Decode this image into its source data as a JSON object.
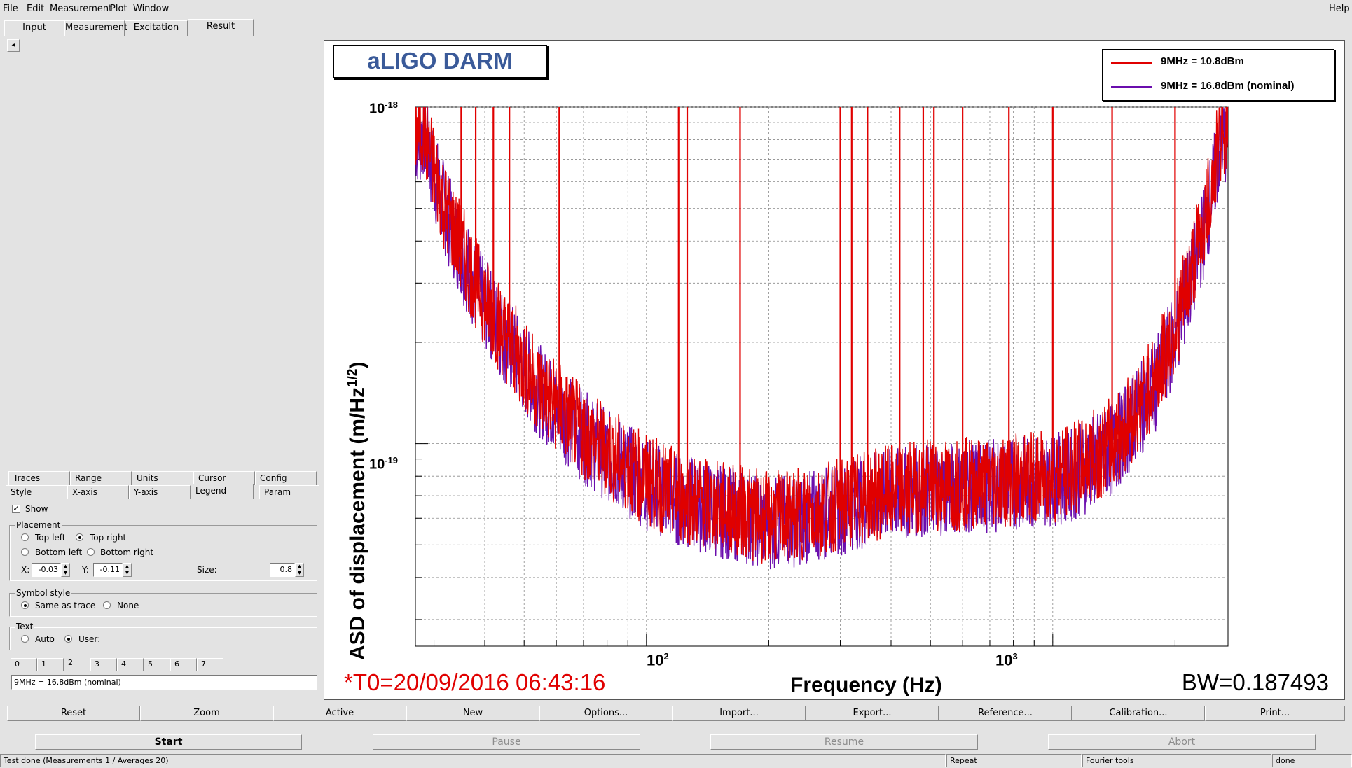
{
  "menu": {
    "file": "File",
    "edit": "Edit",
    "measurement": "Measurement",
    "plot": "Plot",
    "window": "Window",
    "help": "Help"
  },
  "tabs": {
    "input": "Input",
    "measurement": "Measurement",
    "excitation": "Excitation",
    "result": "Result",
    "active": "Result"
  },
  "panel": {
    "tabs_row1": [
      "Traces",
      "Range",
      "Units",
      "Cursor",
      "Config"
    ],
    "tabs_row2": [
      "Style",
      "X-axis",
      "Y-axis",
      "Legend",
      "Param"
    ],
    "active_tab": "Legend",
    "show_label": "Show",
    "show_checked": true,
    "placement": {
      "title": "Placement",
      "options": [
        "Top left",
        "Top right",
        "Bottom left",
        "Bottom right"
      ],
      "selected": "Top right",
      "x_label": "X:",
      "x_value": "-0.03",
      "y_label": "Y:",
      "y_value": "-0.11",
      "size_label": "Size:",
      "size_value": "0.8"
    },
    "symbol_style": {
      "title": "Symbol style",
      "options": [
        "Same as trace",
        "None"
      ],
      "selected": "Same as trace"
    },
    "text": {
      "title": "Text",
      "options": [
        "Auto",
        "User:"
      ],
      "selected": "User:",
      "trace_tabs": [
        "0",
        "1",
        "2",
        "3",
        "4",
        "5",
        "6",
        "7"
      ],
      "active_trace_tab": "2",
      "value": "9MHz = 16.8dBm (nominal)"
    }
  },
  "plot": {
    "title": "aLIGO DARM",
    "legend": [
      {
        "label": "9MHz = 10.8dBm",
        "color": "#e00000"
      },
      {
        "label": "9MHz = 16.8dBm (nominal)",
        "color": "#6a0dad"
      }
    ],
    "y_title": "ASD of displacement (m/Hz",
    "y_title_sup": "1/2",
    "y_title_end": ")",
    "x_title": "Frequency (Hz)",
    "y_ticks": [
      {
        "base": "10",
        "exp": "-18"
      },
      {
        "base": "10",
        "exp": "-19"
      }
    ],
    "x_ticks": [
      {
        "base": "10",
        "exp": "2"
      },
      {
        "base": "10",
        "exp": "3"
      }
    ],
    "t0": "*T0=20/09/2016 06:43:16",
    "bw": "BW=0.187493",
    "colors": {
      "red": "#e00000",
      "purple": "#6a0dad"
    }
  },
  "chart_data": {
    "type": "line",
    "title": "aLIGO DARM",
    "xlabel": "Frequency (Hz)",
    "ylabel": "ASD of displacement (m/Hz^1/2)",
    "x_scale": "log",
    "y_scale": "log",
    "xlim": [
      27,
      2700
    ],
    "ylim": [
      2.5e-20,
      1e-18
    ],
    "grid": true,
    "legend_position": "top-right",
    "series": [
      {
        "name": "9MHz = 10.8dBm",
        "color": "#e00000",
        "x": [
          28,
          30,
          32,
          35,
          38,
          42,
          46,
          50,
          55,
          60,
          65,
          70,
          80,
          90,
          100,
          120,
          150,
          180,
          200,
          230,
          260,
          300,
          350,
          400,
          450,
          500,
          600,
          700,
          800,
          900,
          1000,
          1100,
          1200,
          1400,
          1600,
          1800,
          2000,
          2200,
          2400,
          2600
        ],
        "y": [
          9e-19,
          6.5e-19,
          5e-19,
          3.8e-19,
          3e-19,
          2.4e-19,
          2e-19,
          1.7e-19,
          1.45e-19,
          1.3e-19,
          1.18e-19,
          1.08e-19,
          9.5e-20,
          8.5e-20,
          7.8e-20,
          7e-20,
          6.5e-20,
          6.2e-20,
          6e-20,
          6.1e-20,
          6.3e-20,
          6.6e-20,
          7e-20,
          7.2e-20,
          7.4e-20,
          7.5e-20,
          7.6e-20,
          7.7e-20,
          7.8e-20,
          7.9e-20,
          8e-20,
          8.3e-20,
          8.8e-20,
          1e-19,
          1.25e-19,
          1.6e-19,
          2.2e-19,
          3.3e-19,
          5e-19,
          8.5e-19
        ],
        "lines_x": [
          35,
          38,
          42,
          46,
          61,
          120,
          126,
          170,
          300,
          320,
          350,
          420,
          480,
          510,
          600,
          780,
          1000,
          1400,
          2000
        ]
      },
      {
        "name": "9MHz = 16.8dBm (nominal)",
        "color": "#6a0dad",
        "x": [
          28,
          30,
          32,
          35,
          38,
          42,
          46,
          50,
          55,
          60,
          65,
          70,
          80,
          90,
          100,
          120,
          150,
          180,
          200,
          230,
          260,
          300,
          350,
          400,
          450,
          500,
          600,
          700,
          800,
          900,
          1000,
          1100,
          1200,
          1400,
          1600,
          1800,
          2000,
          2200,
          2400,
          2600
        ],
        "y": [
          8.8e-19,
          6.3e-19,
          4.9e-19,
          3.7e-19,
          2.9e-19,
          2.35e-19,
          1.95e-19,
          1.65e-19,
          1.42e-19,
          1.27e-19,
          1.15e-19,
          1.05e-19,
          9.2e-20,
          8.3e-20,
          7.6e-20,
          6.8e-20,
          6.3e-20,
          6e-20,
          5.8e-20,
          5.9e-20,
          6.1e-20,
          6.4e-20,
          6.8e-20,
          7e-20,
          7.2e-20,
          7.3e-20,
          7.4e-20,
          7.5e-20,
          7.6e-20,
          7.7e-20,
          7.8e-20,
          8e-20,
          8.5e-20,
          9.6e-20,
          1.2e-19,
          1.5e-19,
          2.1e-19,
          3.1e-19,
          4.7e-19,
          8e-19
        ]
      }
    ]
  },
  "toolbar": [
    "Reset",
    "Zoom",
    "Active",
    "New",
    "Options...",
    "Import...",
    "Export...",
    "Reference...",
    "Calibration...",
    "Print..."
  ],
  "controls": {
    "start": "Start",
    "pause": "Pause",
    "resume": "Resume",
    "abort": "Abort"
  },
  "status": {
    "message": "Test done (Measurements 1 / Averages 20)",
    "repeat": "Repeat",
    "tools": "Fourier tools",
    "state": "done"
  }
}
